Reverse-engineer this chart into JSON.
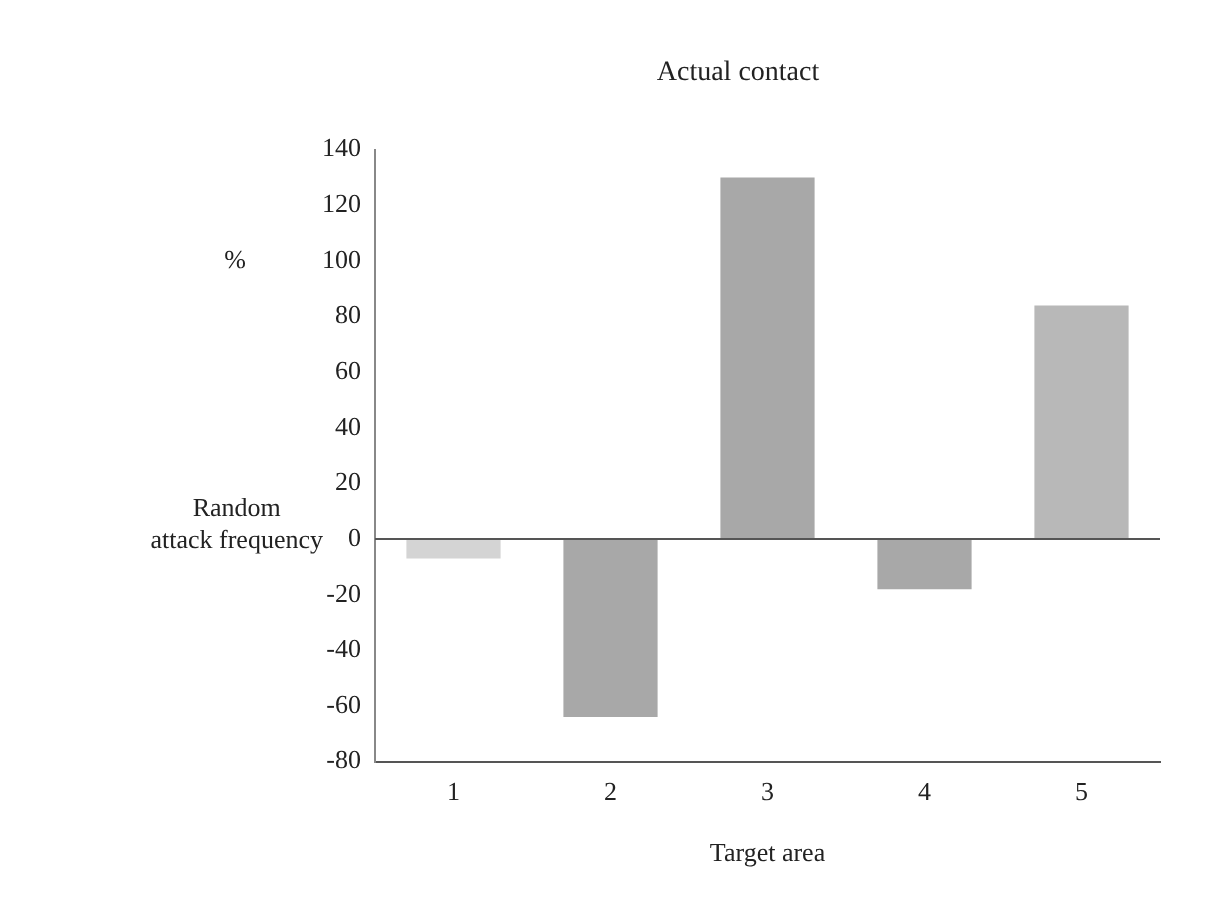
{
  "chart_data": {
    "type": "bar",
    "title": "Actual contact",
    "xlabel": "Target area",
    "ylabel": "%",
    "categories": [
      "1",
      "2",
      "3",
      "4",
      "5"
    ],
    "values": [
      -7,
      -64,
      130,
      -18,
      84
    ],
    "colors": [
      "#d4d4d4",
      "#a8a8a8",
      "#a8a8a8",
      "#a8a8a8",
      "#b8b8b8"
    ],
    "ylim": [
      -80,
      140
    ],
    "yticks": [
      -80,
      -60,
      -40,
      -20,
      0,
      20,
      40,
      60,
      80,
      100,
      120,
      140
    ],
    "ref_lines": [
      {
        "axis": "y",
        "value": 0,
        "label": "Random attack frequency",
        "color": "#555555"
      }
    ],
    "grid": false,
    "legend": false
  }
}
